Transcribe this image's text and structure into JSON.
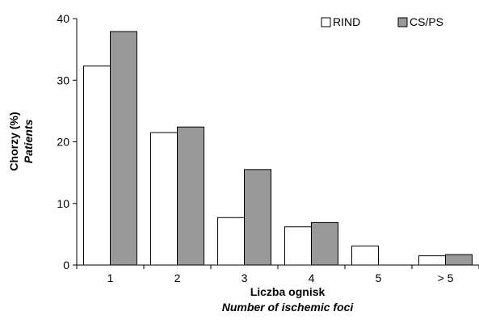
{
  "chart_data": {
    "type": "bar",
    "categories": [
      "1",
      "2",
      "3",
      "4",
      "5",
      "> 5"
    ],
    "series": [
      {
        "name": "RIND",
        "values": [
          32.3,
          21.5,
          7.7,
          6.2,
          3.1,
          1.5
        ],
        "color": "#ffffff"
      },
      {
        "name": "CS/PS",
        "values": [
          37.9,
          22.4,
          15.5,
          6.9,
          0,
          1.7
        ],
        "color": "#999999"
      }
    ],
    "title": "",
    "xlabel": "Liczba ognisk",
    "xlabel_secondary": "Number of ischemic foci",
    "ylabel": "Chorzy (%)",
    "ylabel_secondary": "Patients",
    "ylim": [
      0,
      40
    ],
    "yticks": [
      "0",
      "10",
      "20",
      "30",
      "40"
    ],
    "grid": false,
    "legend": "top-right"
  }
}
